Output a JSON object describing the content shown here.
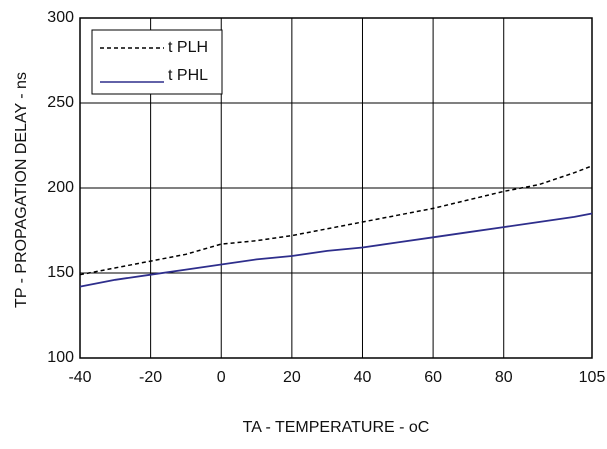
{
  "chart_data": {
    "type": "line",
    "x_label": "TA - TEMPERATURE - oC",
    "y_label": "TP - PROPAGATION DELAY - ns",
    "x": [
      -40,
      -30,
      -20,
      -10,
      0,
      10,
      20,
      30,
      40,
      50,
      60,
      70,
      80,
      90,
      100,
      105
    ],
    "series": [
      {
        "name": "t PLH",
        "color": "#000000",
        "dashed": true,
        "values": [
          149,
          153,
          157,
          161,
          167,
          169,
          172,
          176,
          180,
          184,
          188,
          193,
          198,
          202,
          209,
          213
        ]
      },
      {
        "name": "t PHL",
        "color": "#2e2e8c",
        "dashed": false,
        "values": [
          142,
          146,
          149,
          152,
          155,
          158,
          160,
          163,
          165,
          168,
          171,
          174,
          177,
          180,
          183,
          185
        ]
      }
    ],
    "xlim": [
      -40,
      105
    ],
    "xticks": [
      -40,
      -20,
      0,
      20,
      40,
      60,
      80,
      105
    ],
    "ylim": [
      100,
      300
    ],
    "yticks": [
      100,
      150,
      200,
      250,
      300
    ],
    "grid": true,
    "legend": "top-left"
  }
}
